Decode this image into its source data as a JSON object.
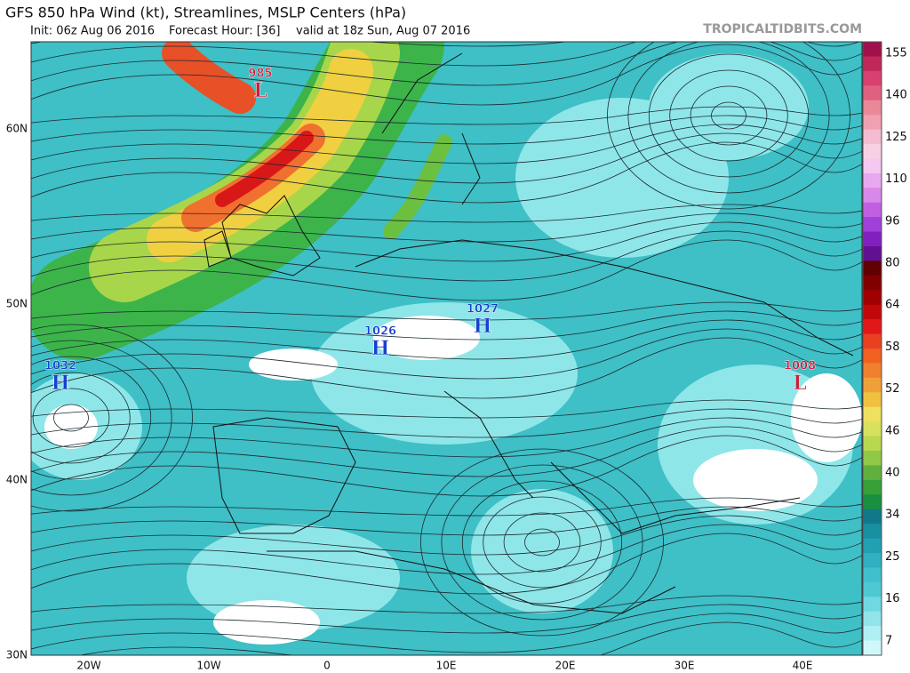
{
  "header": {
    "title": "GFS 850 hPa Wind (kt), Streamlines, MSLP Centers (hPa)",
    "init": "Init: 06z Aug 06 2016",
    "forecast": "Forecast Hour: [36]",
    "valid": "valid at 18z Sun, Aug 07 2016",
    "source": "TROPICALTIDBITS.COM"
  },
  "map": {
    "lat_labels": [
      "60N",
      "50N",
      "40N",
      "30N"
    ],
    "lon_labels": [
      "20W",
      "10W",
      "0",
      "10E",
      "20E",
      "30E",
      "40E"
    ],
    "centers": [
      {
        "value": "985",
        "letter": "L"
      },
      {
        "value": "1026",
        "letter": "H"
      },
      {
        "value": "1027",
        "letter": "H"
      },
      {
        "value": "1032",
        "letter": "H"
      },
      {
        "value": "1008",
        "letter": "L"
      }
    ]
  },
  "colorbar": {
    "labels": [
      "155",
      "140",
      "125",
      "110",
      "96",
      "80",
      "64",
      "58",
      "52",
      "46",
      "40",
      "34",
      "25",
      "16",
      "7"
    ]
  }
}
